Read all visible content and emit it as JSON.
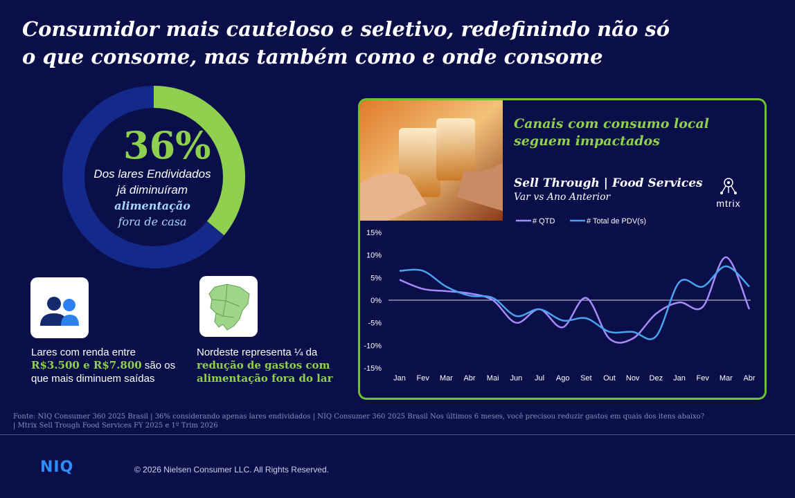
{
  "title": "Consumidor mais cauteloso e seletivo, redefinindo não só o que consome, mas também como e onde consome",
  "donut": {
    "percent_label": "36%",
    "value": 36,
    "line1": "Dos lares Endividados",
    "line2": "já diminuíram",
    "highlight": "alimentação",
    "line4": "fora de casa",
    "colors": {
      "filled": "#8fd14f",
      "remaining": "#142a8a"
    }
  },
  "card1": {
    "icon": "people-icon",
    "text_before": "Lares com renda entre",
    "highlight": "R$3.500 e R$7.800",
    "text_after": "são os que mais diminuem saídas"
  },
  "card2": {
    "icon": "northeast-map-icon",
    "text_before": "Nordeste representa ¼ da",
    "highlight": "redução de gastos com alimentação fora do lar"
  },
  "panel": {
    "heading": "Canais com consumo local seguem impactados",
    "subtitle": "Sell Through | Food Services",
    "subtitle2": "Var vs Ano Anterior",
    "photo_icon": "toast-glasses-photo",
    "logo_text": "mtrix"
  },
  "chart_data": {
    "type": "line",
    "categories": [
      "Jan",
      "Fev",
      "Mar",
      "Abr",
      "Mai",
      "Jun",
      "Jul",
      "Ago",
      "Set",
      "Out",
      "Nov",
      "Dez",
      "Jan",
      "Fev",
      "Mar",
      "Abr"
    ],
    "series": [
      {
        "name": "# QTD",
        "color": "#a78bfa",
        "values": [
          4.5,
          2.5,
          2.0,
          1.5,
          0.0,
          -5.0,
          -2.0,
          -6.0,
          0.5,
          -8.5,
          -8.5,
          -3.0,
          -0.5,
          -1.5,
          9.5,
          -2.0
        ]
      },
      {
        "name": "# Total de PDV(s)",
        "color": "#4aa3f0",
        "values": [
          6.5,
          6.5,
          3.0,
          1.0,
          0.5,
          -3.5,
          -2.0,
          -4.5,
          -4.0,
          -7.0,
          -7.0,
          -8.0,
          4.0,
          3.0,
          7.5,
          3.0
        ]
      }
    ],
    "yticks": [
      "15%",
      "10%",
      "5%",
      "0%",
      "-5%",
      "-10%",
      "-15%"
    ],
    "ylim": [
      -15,
      15
    ],
    "legend": "top",
    "grid": false
  },
  "footnote": "Fonte: NIQ Consumer 360 2025 Brasil | 36% considerando apenas lares endividados | NIQ Consumer 360 2025 Brasil Nos últimos 6 meses, você precisou reduzir gastos em quais dos itens abaixo? | Mtrix Sell Trough Food Services FY 2025 e 1º Trim 2026",
  "footer": {
    "logo": "NIQ",
    "copyright": "© 2026 Nielsen Consumer LLC. All Rights Reserved."
  }
}
